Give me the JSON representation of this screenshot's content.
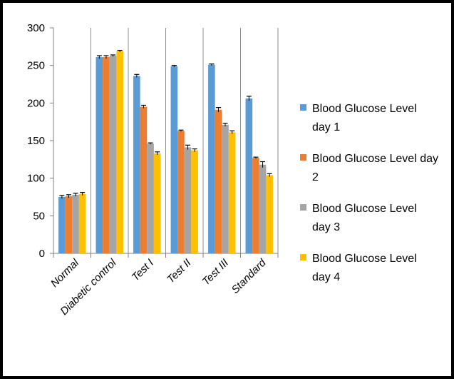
{
  "chart_data": {
    "type": "bar",
    "title": "",
    "xlabel": "",
    "ylabel": "",
    "ylim": [
      0,
      300
    ],
    "yticks": [
      0,
      50,
      100,
      150,
      200,
      250,
      300
    ],
    "categories": [
      "Normal",
      "Diabetic control",
      "Test I",
      "Test II",
      "Test III",
      "Standard"
    ],
    "series": [
      {
        "name": "Blood Glucose Level day 1",
        "legend_lines": [
          "Blood Glucose Level",
          "day 1"
        ],
        "color": "#5B9BD5",
        "values": [
          75,
          261,
          236,
          249,
          251,
          206
        ],
        "errors": [
          2,
          2,
          2,
          1,
          1,
          3
        ]
      },
      {
        "name": "Blood Glucose Level day 2",
        "legend_lines": [
          "Blood Glucose Level day",
          "2"
        ],
        "color": "#ED7D31",
        "values": [
          76,
          261,
          195,
          163,
          191,
          127
        ],
        "errors": [
          2,
          2,
          2,
          1,
          3,
          1
        ]
      },
      {
        "name": "Blood Glucose Level day 3",
        "legend_lines": [
          "Blood Glucose Level",
          "day 3"
        ],
        "color": "#A5A5A5",
        "values": [
          78,
          263,
          146,
          141,
          171,
          118
        ],
        "errors": [
          2,
          1,
          1,
          3,
          2,
          4
        ]
      },
      {
        "name": "Blood Glucose Level day 4",
        "legend_lines": [
          "Blood Glucose Level",
          "day 4"
        ],
        "color": "#FFC000",
        "values": [
          79,
          269,
          133,
          137,
          161,
          104
        ],
        "errors": [
          2,
          1,
          2,
          2,
          2,
          2
        ]
      }
    ],
    "grid": "vertical category separators",
    "legend_position": "right"
  }
}
